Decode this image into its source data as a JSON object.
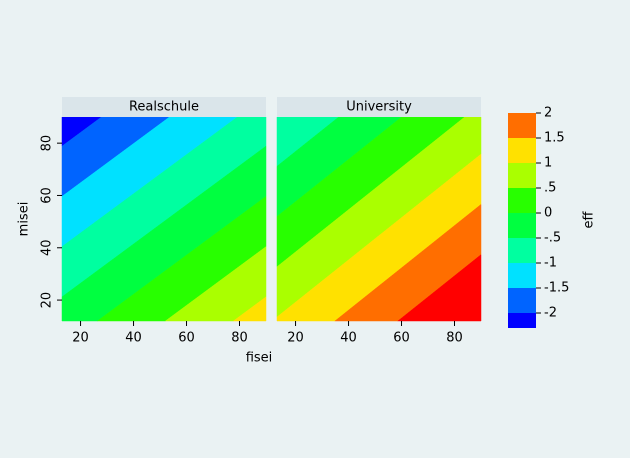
{
  "chart_data": {
    "type": "contour",
    "x_label": "fisei",
    "y_label": "misei",
    "z_label": "eff",
    "xlim": [
      13,
      90
    ],
    "ylim": [
      12,
      90
    ],
    "xticks": [
      20,
      40,
      60,
      80
    ],
    "yticks": [
      20,
      40,
      60,
      80
    ],
    "panels": [
      {
        "name": "Realschule",
        "z": [
          [
            -0.26,
            1.24
          ],
          [
            -2.29,
            -0.79
          ]
        ]
      },
      {
        "name": "University",
        "z": [
          [
            1.04,
            2.66
          ],
          [
            -0.99,
            0.63
          ]
        ]
      }
    ],
    "zlim": [
      -2.3,
      2
    ],
    "levels": [
      -2,
      {
        "value": -1.5,
        "label": "-1.5"
      },
      -1,
      {
        "value": -0.5,
        "label": "-.5"
      },
      0,
      {
        "value": 0.5,
        "label": ".5"
      },
      1,
      {
        "value": 1.5,
        "label": "1.5"
      },
      2
    ],
    "colors": [
      "#0000ff",
      "#0064ff",
      "#00e1ff",
      "#00ffa0",
      "#00ff40",
      "#28ff00",
      "#aaff00",
      "#ffe100",
      "#ff6e00",
      "#ff0000"
    ]
  }
}
